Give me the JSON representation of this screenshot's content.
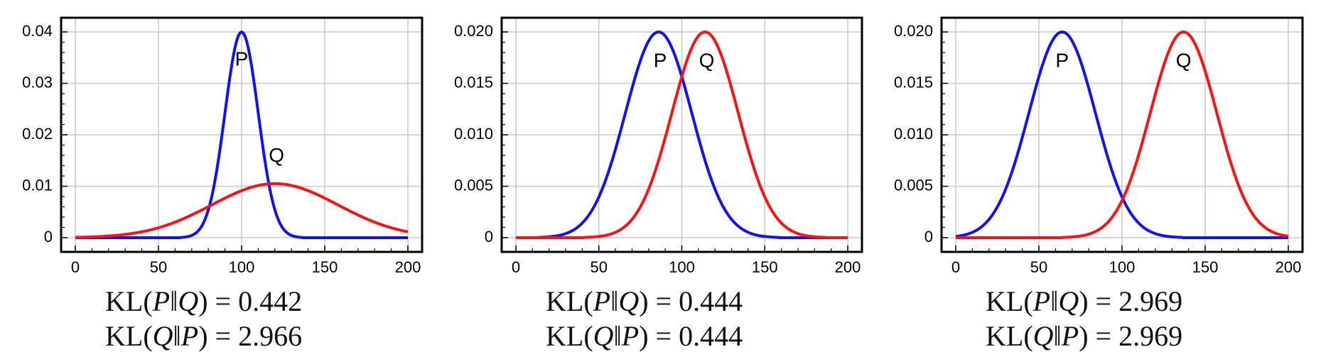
{
  "colors": {
    "P": "#1010ff",
    "Q": "#ff1010",
    "grid": "#c8c8c8",
    "axis": "#000000"
  },
  "chart_data": [
    {
      "type": "line",
      "xlim": [
        0,
        200
      ],
      "ylim": [
        0,
        0.04
      ],
      "x_ticks": [
        0,
        50,
        100,
        150,
        200
      ],
      "y_ticks": [
        0,
        0.01,
        0.02,
        0.03,
        0.04
      ],
      "y_tick_labels": [
        "0",
        "0.01",
        "0.02",
        "0.03",
        "0.04"
      ],
      "grid": true,
      "series": [
        {
          "name": "P",
          "color": "#1010ff",
          "mean": 100,
          "sd": 10,
          "peak": 0.04
        },
        {
          "name": "Q",
          "color": "#ff1010",
          "mean": 120,
          "sd": 38,
          "peak": 0.0105
        }
      ],
      "labels": [
        {
          "text": "P",
          "x": 100,
          "y": 0.0345
        },
        {
          "text": "Q",
          "x": 121,
          "y": 0.0158
        }
      ],
      "kl_pq": "0.442",
      "kl_qp": "2.966"
    },
    {
      "type": "line",
      "xlim": [
        0,
        200
      ],
      "ylim": [
        0,
        0.02
      ],
      "x_ticks": [
        0,
        50,
        100,
        150,
        200
      ],
      "y_ticks": [
        0,
        0.005,
        0.01,
        0.015,
        0.02
      ],
      "y_tick_labels": [
        "0",
        "0.005",
        "0.010",
        "0.015",
        "0.020"
      ],
      "grid": true,
      "series": [
        {
          "name": "P",
          "color": "#1010ff",
          "mean": 86,
          "sd": 20,
          "peak": 0.02
        },
        {
          "name": "Q",
          "color": "#ff1010",
          "mean": 114,
          "sd": 20,
          "peak": 0.02
        }
      ],
      "labels": [
        {
          "text": "P",
          "x": 87,
          "y": 0.0171
        },
        {
          "text": "Q",
          "x": 115,
          "y": 0.0171
        }
      ],
      "kl_pq": "0.444",
      "kl_qp": "0.444"
    },
    {
      "type": "line",
      "xlim": [
        0,
        200
      ],
      "ylim": [
        0,
        0.02
      ],
      "x_ticks": [
        0,
        50,
        100,
        150,
        200
      ],
      "y_ticks": [
        0,
        0.005,
        0.01,
        0.015,
        0.02
      ],
      "y_tick_labels": [
        "0",
        "0.005",
        "0.010",
        "0.015",
        "0.020"
      ],
      "grid": true,
      "series": [
        {
          "name": "P",
          "color": "#1010ff",
          "mean": 64,
          "sd": 20,
          "peak": 0.02
        },
        {
          "name": "Q",
          "color": "#ff1010",
          "mean": 137,
          "sd": 20,
          "peak": 0.02
        }
      ],
      "labels": [
        {
          "text": "P",
          "x": 64,
          "y": 0.0171
        },
        {
          "text": "Q",
          "x": 137,
          "y": 0.0171
        }
      ],
      "kl_pq": "2.969",
      "kl_qp": "2.969"
    }
  ]
}
